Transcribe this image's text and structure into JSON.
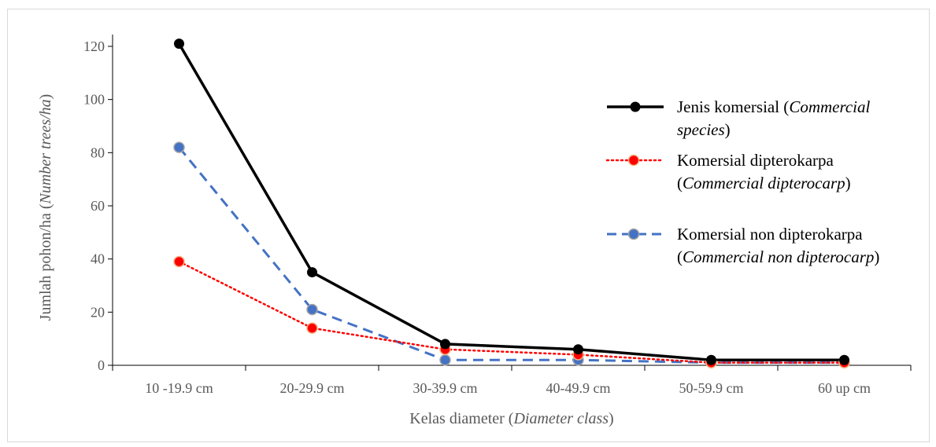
{
  "chart_data": {
    "type": "line",
    "categories": [
      "10 -19.9 cm",
      "20-29.9 cm",
      "30-39.9 cm",
      "40-49.9 cm",
      "50-59.9 cm",
      "60 up cm"
    ],
    "series": [
      {
        "name_plain": "Jenis komersial (",
        "name_italic": "Commercial species",
        "name_tail": ")",
        "values": [
          121,
          35,
          8,
          6,
          2,
          2
        ],
        "color": "#000000",
        "marker_color": "#000000",
        "dash": "solid"
      },
      {
        "name_plain": "Komersial dipterokarpa",
        "name_italic": "Commercial dipterocarp",
        "name_tail": ")",
        "values": [
          39,
          14,
          6,
          4,
          1,
          1
        ],
        "color": "#ff0000",
        "marker_color": "#ff0000",
        "dash": "dotted"
      },
      {
        "name_plain": "Komersial non dipterokarpa",
        "name_italic": "Commercial non dipterocarp",
        "name_tail": ")",
        "values": [
          82,
          21,
          2,
          2,
          1,
          1
        ],
        "color": "#4472c4",
        "marker_color": "#4472c4",
        "dash": "dashed"
      }
    ],
    "ylim": [
      0,
      120
    ],
    "yticks": [
      "0",
      "20",
      "40",
      "60",
      "80",
      "100",
      "120"
    ],
    "ylabel_plain": "Jumlah pohon/ha (",
    "ylabel_italic": "Number trees/ha",
    "ylabel_tail": ")",
    "xlabel_plain": "Kelas diameter (",
    "xlabel_italic": "Diameter class",
    "xlabel_tail": ")",
    "grid": false,
    "legend_position": "right"
  }
}
